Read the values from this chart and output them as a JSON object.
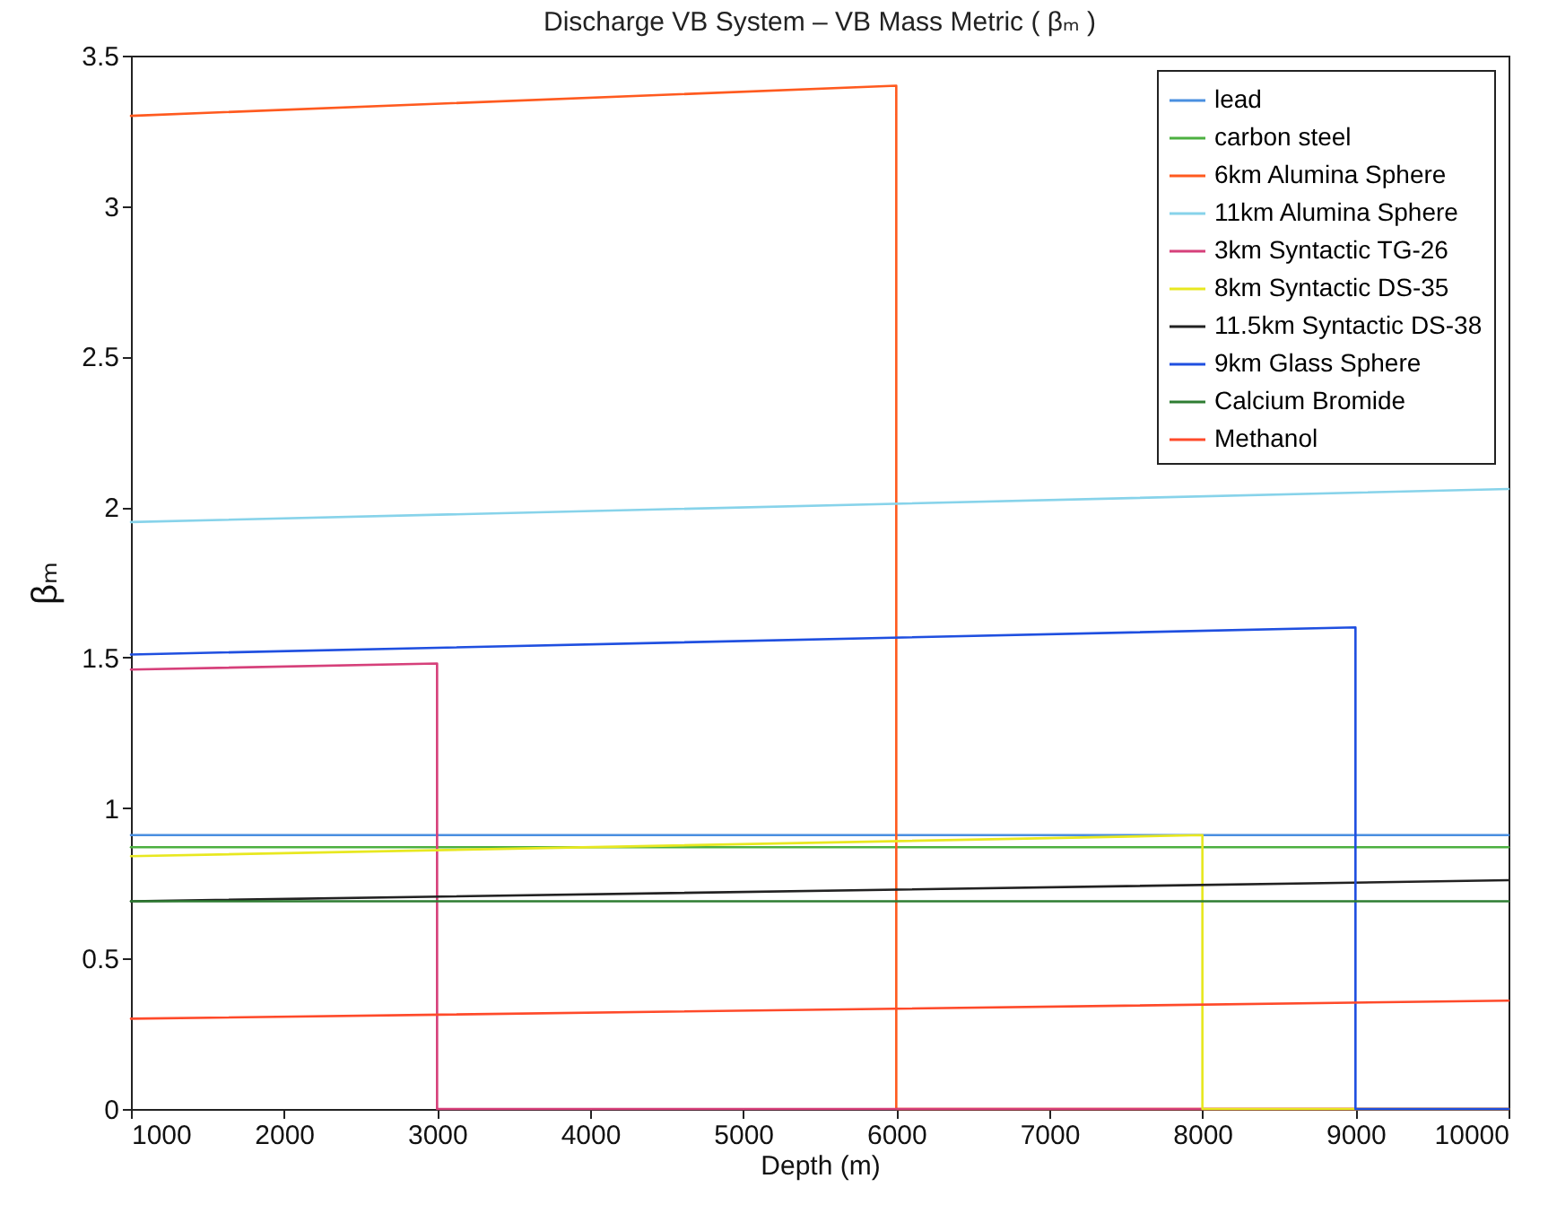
{
  "chart_data": {
    "type": "line",
    "title": "Discharge VB System – VB Mass Metric ( βₘ )",
    "xlabel": "Depth (m)",
    "ylabel": "βₘ",
    "xlim": [
      1000,
      10000
    ],
    "xticks": [
      1000,
      2000,
      3000,
      4000,
      5000,
      6000,
      7000,
      8000,
      9000,
      10000
    ],
    "ylim": [
      0,
      3.5
    ],
    "yticks": [
      0,
      0.5,
      1,
      1.5,
      2,
      2.5,
      3,
      3.5
    ],
    "grid": false,
    "legend": "top right",
    "line_style": "solid",
    "marker": "none",
    "series": [
      {
        "name": "lead",
        "color": "#4a8fe0",
        "x": [
          1000,
          10000
        ],
        "values": [
          0.91,
          0.91
        ]
      },
      {
        "name": "carbon steel",
        "color": "#4cb040",
        "x": [
          1000,
          10000
        ],
        "values": [
          0.87,
          0.87
        ]
      },
      {
        "name": "6km Alumina Sphere",
        "color": "#ff5a1f",
        "x": [
          1000,
          6000,
          6000,
          10000
        ],
        "values": [
          3.3,
          3.4,
          0,
          0
        ]
      },
      {
        "name": "11km Alumina Sphere",
        "color": "#87d3ea",
        "x": [
          1000,
          10000
        ],
        "values": [
          1.95,
          2.06
        ]
      },
      {
        "name": "3km Syntactic TG-26",
        "color": "#d6407a",
        "x": [
          1000,
          3000,
          3000,
          10000
        ],
        "values": [
          1.46,
          1.48,
          0,
          0
        ]
      },
      {
        "name": "8km Syntactic DS-35",
        "color": "#e8e820",
        "x": [
          1000,
          8000,
          8000,
          10000
        ],
        "values": [
          0.84,
          0.91,
          0,
          0
        ]
      },
      {
        "name": "11.5km Syntactic DS-38",
        "color": "#222222",
        "x": [
          1000,
          10000
        ],
        "values": [
          0.69,
          0.76
        ]
      },
      {
        "name": "9km Glass Sphere",
        "color": "#1f4fe0",
        "x": [
          1000,
          9000,
          9000,
          10000
        ],
        "values": [
          1.51,
          1.6,
          0,
          0
        ]
      },
      {
        "name": "Calcium Bromide",
        "color": "#2e7d32",
        "x": [
          1000,
          10000
        ],
        "values": [
          0.69,
          0.69
        ]
      },
      {
        "name": "Methanol",
        "color": "#ff4a2a",
        "x": [
          1000,
          10000
        ],
        "values": [
          0.3,
          0.36
        ]
      }
    ]
  }
}
